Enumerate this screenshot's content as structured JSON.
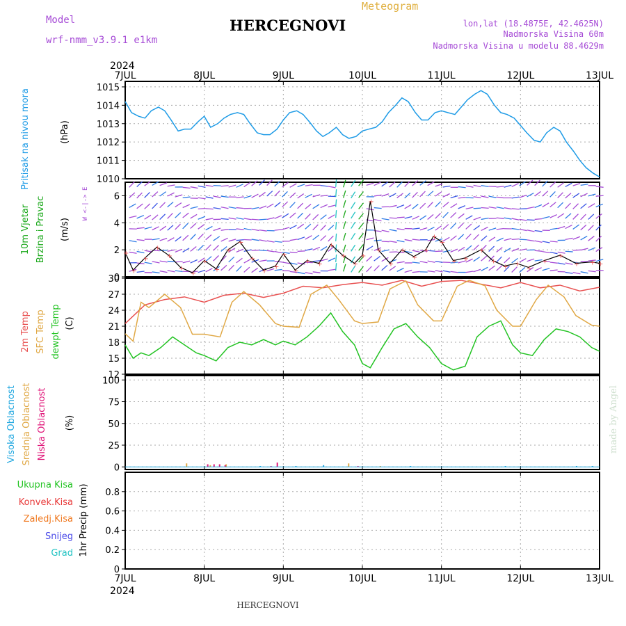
{
  "header": {
    "model_label": "Model",
    "model_name": "wrf-nmm_v3.9.1 e1km",
    "station_title": "HERCEGNOVI",
    "meteogram_label": "Meteogram",
    "lonlat": "lon,lat (18.4875E, 42.4625N)",
    "altitude": "Nadmorska Visina 60m",
    "model_altitude": "Nadmorska Visina u modelu 88.4629m",
    "year_top": "2024",
    "year_bottom": "2024",
    "footer_station": "HERCEGNOVI",
    "watermark": "made by Angel"
  },
  "colors": {
    "pressure": "#1e9be6",
    "wind_green": "#1aa81a",
    "wind_violet": "#a64bd6",
    "temp_2m": "#e85050",
    "temp_sfc": "#e0a845",
    "temp_dewpt": "#22c322",
    "cloud_high": "#22a8e0",
    "cloud_mid": "#e0a845",
    "cloud_low": "#e0187a",
    "precip_total": "#22c322",
    "precip_conv": "#e83a3a",
    "precip_frozen": "#f07a22",
    "precip_snow": "#4a4ae8",
    "precip_hail": "#22c3c3"
  },
  "chart_data": [
    {
      "type": "line",
      "ylabel_lines": [
        "Pritisak na nivou mora",
        "(hPa)"
      ],
      "x_labels": [
        "7JUL",
        "8JUL",
        "9JUL",
        "10JUL",
        "11JUL",
        "12JUL",
        "13JUL"
      ],
      "ylim": [
        1010,
        1015.3
      ],
      "y_ticks": [
        1010,
        1011,
        1012,
        1013,
        1014,
        1015
      ],
      "grid": true,
      "series": [
        {
          "x": [
            0,
            0.08,
            0.17,
            0.25,
            0.33,
            0.42,
            0.5,
            0.58,
            0.67,
            0.75,
            0.83,
            0.92,
            1,
            1.08,
            1.17,
            1.25,
            1.33,
            1.42,
            1.5,
            1.58,
            1.67,
            1.75,
            1.83,
            1.92,
            2,
            2.08,
            2.17,
            2.25,
            2.33,
            2.42,
            2.5,
            2.58,
            2.67,
            2.75,
            2.83,
            2.92,
            3,
            3.08,
            3.17,
            3.25,
            3.33,
            3.42,
            3.5,
            3.58,
            3.67,
            3.75,
            3.83,
            3.92,
            4,
            4.08,
            4.17,
            4.25,
            4.33,
            4.42,
            4.5,
            4.58,
            4.67,
            4.75,
            4.83,
            4.92,
            5,
            5.08,
            5.17,
            5.25,
            5.33,
            5.42,
            5.5,
            5.58,
            5.67,
            5.75,
            5.83,
            5.92,
            6
          ],
          "y": [
            1014.2,
            1013.6,
            1013.4,
            1013.3,
            1013.7,
            1013.9,
            1013.7,
            1013.2,
            1012.6,
            1012.7,
            1012.7,
            1013.1,
            1013.4,
            1012.8,
            1013.0,
            1013.3,
            1013.5,
            1013.6,
            1013.5,
            1013.0,
            1012.5,
            1012.4,
            1012.4,
            1012.7,
            1013.2,
            1013.6,
            1013.7,
            1013.5,
            1013.1,
            1012.6,
            1012.3,
            1012.5,
            1012.8,
            1012.4,
            1012.2,
            1012.3,
            1012.6,
            1012.7,
            1012.8,
            1013.1,
            1013.6,
            1014.0,
            1014.4,
            1014.2,
            1013.6,
            1013.2,
            1013.2,
            1013.6,
            1013.7,
            1013.6,
            1013.5,
            1013.9,
            1014.3,
            1014.6,
            1014.8,
            1014.6,
            1014.0,
            1013.6,
            1013.5,
            1013.3,
            1012.9,
            1012.5,
            1012.1,
            1012.0,
            1012.5,
            1012.8,
            1012.6,
            1012.0,
            1011.5,
            1011.0,
            1010.6,
            1010.3,
            1010.1
          ]
        }
      ]
    },
    {
      "type": "line",
      "ylabel_lines": [
        "10m Vjetar",
        "Brzina i Pravac",
        "(m/s)"
      ],
      "compass_label": "W <-|-> E",
      "x_labels": [
        "7JUL",
        "8JUL",
        "9JUL",
        "10JUL",
        "11JUL",
        "12JUL",
        "13JUL"
      ],
      "ylim": [
        0,
        7
      ],
      "y_ticks": [
        0,
        2,
        4,
        6
      ],
      "grid": true,
      "series": [
        {
          "x": [
            0,
            0.1,
            0.25,
            0.4,
            0.55,
            0.7,
            0.85,
            1,
            1.15,
            1.3,
            1.45,
            1.6,
            1.75,
            1.9,
            2,
            2.15,
            2.3,
            2.45,
            2.6,
            2.75,
            2.9,
            3,
            3.1,
            3.2,
            3.35,
            3.5,
            3.65,
            3.8,
            3.9,
            4,
            4.15,
            4.3,
            4.5,
            4.65,
            4.8,
            4.95,
            5.1,
            5.3,
            5.5,
            5.7,
            5.9,
            6
          ],
          "y": [
            1.8,
            0.5,
            1.4,
            2.2,
            1.6,
            0.7,
            0.3,
            1.2,
            0.6,
            2.0,
            2.6,
            1.4,
            0.5,
            0.8,
            1.7,
            0.5,
            1.2,
            1.0,
            2.4,
            1.6,
            1.0,
            1.6,
            5.6,
            2.0,
            1.0,
            2.0,
            1.5,
            2.0,
            3.0,
            2.6,
            1.2,
            1.4,
            2.0,
            1.2,
            0.8,
            1.0,
            0.7,
            1.2,
            1.6,
            1.0,
            1.1,
            1.0
          ]
        }
      ]
    },
    {
      "type": "line",
      "ylabel_lines": [
        "2m Temp",
        "SFC Temp",
        "dewpt Temp",
        "(C)"
      ],
      "x_labels": [
        "7JUL",
        "8JUL",
        "9JUL",
        "10JUL",
        "11JUL",
        "12JUL",
        "13JUL"
      ],
      "ylim": [
        12,
        30
      ],
      "y_ticks": [
        12,
        15,
        18,
        21,
        24,
        27,
        30
      ],
      "grid": true,
      "series": [
        {
          "name": "2m Temp",
          "x": [
            0,
            0.25,
            0.5,
            0.75,
            1,
            1.25,
            1.5,
            1.75,
            2,
            2.25,
            2.5,
            2.75,
            3,
            3.25,
            3.5,
            3.75,
            4,
            4.25,
            4.5,
            4.75,
            5,
            5.25,
            5.5,
            5.75,
            6
          ],
          "y": [
            21.5,
            25,
            26,
            26.5,
            25.5,
            26.8,
            27.2,
            26.4,
            27.2,
            28.5,
            28.2,
            28.8,
            29.2,
            28.7,
            29.6,
            28.5,
            29.4,
            29.6,
            28.9,
            28.2,
            29.2,
            28.2,
            28.7,
            27.6,
            28.3
          ]
        },
        {
          "name": "SFC Temp",
          "x": [
            0,
            0.1,
            0.2,
            0.3,
            0.5,
            0.7,
            0.85,
            1,
            1.2,
            1.35,
            1.5,
            1.7,
            1.9,
            2,
            2.2,
            2.35,
            2.55,
            2.7,
            2.9,
            3,
            3.2,
            3.35,
            3.55,
            3.7,
            3.9,
            4,
            4.2,
            4.35,
            4.55,
            4.7,
            4.9,
            5,
            5.2,
            5.35,
            5.55,
            5.7,
            5.9,
            6
          ],
          "y": [
            19.6,
            18.2,
            25.5,
            24.5,
            27.0,
            24.5,
            19.5,
            19.5,
            19.0,
            25.5,
            27.5,
            25.0,
            21.5,
            21.0,
            20.8,
            27.0,
            28.7,
            26.0,
            22.0,
            21.5,
            21.8,
            28.0,
            29.5,
            25.0,
            22.0,
            22.0,
            28.5,
            29.6,
            28.6,
            24.0,
            21.0,
            21.0,
            26.0,
            28.7,
            26.5,
            23.0,
            21.2,
            21.0
          ]
        },
        {
          "name": "dewpt Temp",
          "x": [
            0,
            0.1,
            0.2,
            0.3,
            0.45,
            0.6,
            0.75,
            0.9,
            1,
            1.15,
            1.3,
            1.45,
            1.6,
            1.75,
            1.9,
            2,
            2.15,
            2.3,
            2.45,
            2.6,
            2.75,
            2.9,
            3,
            3.1,
            3.25,
            3.4,
            3.55,
            3.7,
            3.85,
            4,
            4.15,
            4.3,
            4.45,
            4.6,
            4.75,
            4.9,
            5,
            5.15,
            5.3,
            5.45,
            5.6,
            5.75,
            5.9,
            6
          ],
          "y": [
            17.5,
            15.0,
            16.0,
            15.5,
            17.0,
            19.0,
            17.5,
            16.0,
            15.5,
            14.5,
            17.0,
            18.0,
            17.5,
            18.5,
            17.5,
            18.2,
            17.5,
            19.0,
            21.0,
            23.5,
            20.0,
            17.5,
            14.0,
            13.2,
            17.0,
            20.5,
            21.5,
            19.0,
            17.0,
            14.0,
            12.8,
            13.5,
            19.0,
            21.0,
            22.0,
            17.5,
            16.0,
            15.5,
            18.5,
            20.5,
            20.0,
            19.0,
            17.0,
            16.3
          ]
        }
      ]
    },
    {
      "type": "bar",
      "ylabel_lines": [
        "Visoka Oblacnost",
        "Srednja Oblacnost",
        "Niska Oblacnost",
        "(%)"
      ],
      "x_labels": [
        "7JUL",
        "8JUL",
        "9JUL",
        "10JUL",
        "11JUL",
        "12JUL",
        "13JUL"
      ],
      "ylim": [
        -3,
        105
      ],
      "y_ticks": [
        0,
        25,
        50,
        75,
        100
      ],
      "grid": true,
      "series": [
        {
          "name": "Visoka Oblacnost",
          "x": [
            1.7,
            2.15,
            2.5,
            3.6,
            4.8,
            5.7,
            5.9
          ],
          "values": [
            1,
            1,
            2,
            1,
            1,
            1,
            1
          ]
        },
        {
          "name": "Srednja Oblacnost",
          "x": [
            0.75,
            1.05,
            1.25,
            2.8,
            3.2
          ],
          "values": [
            4,
            2,
            3,
            4,
            1
          ]
        },
        {
          "name": "Niska Oblacnost",
          "x": [
            1.0,
            1.08,
            1.15,
            1.22,
            1.8,
            1.88,
            2.9
          ],
          "values": [
            3,
            3,
            3,
            2,
            1,
            5,
            1
          ]
        }
      ]
    },
    {
      "type": "bar",
      "ylabel_lines": [
        "1hr Precip (mm)"
      ],
      "legend": [
        "Ukupna Kisa",
        "Konvek.Kisa",
        "Zaledj.Kisa",
        "Snijeg",
        "Grad"
      ],
      "x_labels": [
        "7JUL",
        "8JUL",
        "9JUL",
        "10JUL",
        "11JUL",
        "12JUL",
        "13JUL"
      ],
      "ylim": [
        0,
        1
      ],
      "y_ticks": [
        0,
        0.2,
        0.4,
        0.6,
        0.8
      ],
      "grid": true,
      "series": []
    }
  ]
}
